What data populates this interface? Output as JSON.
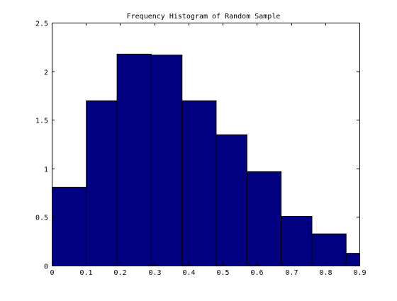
{
  "chart_data": {
    "type": "bar",
    "title": "Frequency Histogram of Random Sample",
    "xlabel": "",
    "ylabel": "",
    "bins": [
      {
        "x0": 0.0,
        "x1": 0.1,
        "value": 0.81
      },
      {
        "x0": 0.1,
        "x1": 0.19,
        "value": 1.7
      },
      {
        "x0": 0.19,
        "x1": 0.29,
        "value": 2.18
      },
      {
        "x0": 0.29,
        "x1": 0.38,
        "value": 2.17
      },
      {
        "x0": 0.38,
        "x1": 0.48,
        "value": 1.7
      },
      {
        "x0": 0.48,
        "x1": 0.57,
        "value": 1.35
      },
      {
        "x0": 0.57,
        "x1": 0.67,
        "value": 0.97
      },
      {
        "x0": 0.67,
        "x1": 0.76,
        "value": 0.51
      },
      {
        "x0": 0.76,
        "x1": 0.86,
        "value": 0.33
      },
      {
        "x0": 0.86,
        "x1": 0.95,
        "value": 0.13
      }
    ],
    "xlim": [
      0,
      0.9
    ],
    "ylim": [
      0,
      2.5
    ],
    "xticks": [
      "0",
      "0.1",
      "0.2",
      "0.3",
      "0.4",
      "0.5",
      "0.6",
      "0.7",
      "0.8",
      "0.9"
    ],
    "yticks": [
      "0",
      "0.5",
      "1",
      "1.5",
      "2",
      "2.5"
    ],
    "grid": false,
    "colors": {
      "bar_fill": "#000080",
      "bar_edge": "#000000",
      "axes": "#000000",
      "background": "#ffffff"
    }
  }
}
